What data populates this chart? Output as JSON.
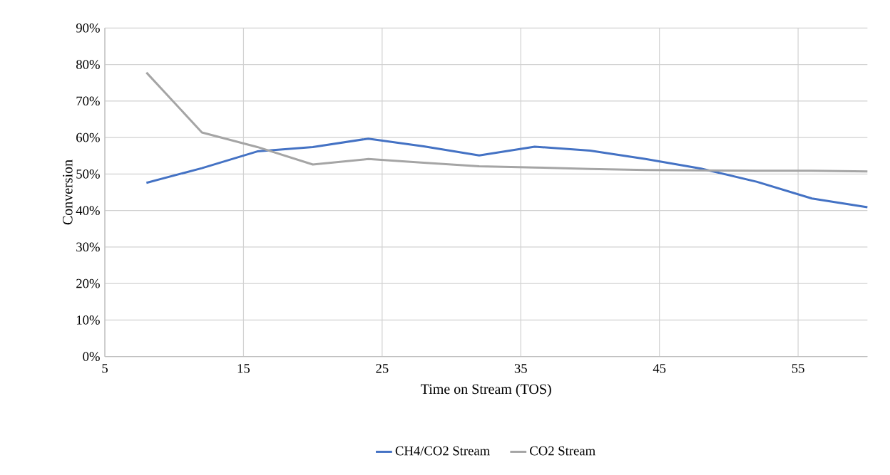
{
  "chart_data": {
    "type": "line",
    "xlabel": "Time on Stream (TOS)",
    "ylabel": "Conversion",
    "x": [
      8,
      12,
      16,
      20,
      24,
      28,
      32,
      36,
      40,
      44,
      48,
      52,
      56,
      60
    ],
    "series": [
      {
        "name": "CH4/CO2 Stream",
        "color": "#4472c4",
        "values": [
          47.6,
          51.6,
          56.2,
          57.4,
          59.7,
          57.6,
          55.1,
          57.5,
          56.4,
          54.1,
          51.5,
          47.9,
          43.3,
          40.9
        ]
      },
      {
        "name": "CO2 Stream",
        "color": "#a5a5a5",
        "values": [
          77.8,
          61.4,
          57.4,
          52.6,
          54.1,
          53.1,
          52.1,
          51.8,
          51.4,
          51.1,
          51.0,
          50.9,
          50.9,
          50.7
        ]
      }
    ],
    "xlim": [
      5,
      60
    ],
    "xticks": [
      5,
      15,
      25,
      35,
      45,
      55
    ],
    "ylim": [
      0,
      90
    ],
    "yticks": [
      {
        "value": 0,
        "label": "0%"
      },
      {
        "value": 10,
        "label": "10%"
      },
      {
        "value": 20,
        "label": "20%"
      },
      {
        "value": 30,
        "label": "30%"
      },
      {
        "value": 40,
        "label": "40%"
      },
      {
        "value": 50,
        "label": "50%"
      },
      {
        "value": 60,
        "label": "60%"
      },
      {
        "value": 70,
        "label": "70%"
      },
      {
        "value": 80,
        "label": "80%"
      },
      {
        "value": 90,
        "label": "90%"
      }
    ],
    "grid": true,
    "legend": "bottom",
    "marker": "none",
    "line_style": "solid"
  }
}
